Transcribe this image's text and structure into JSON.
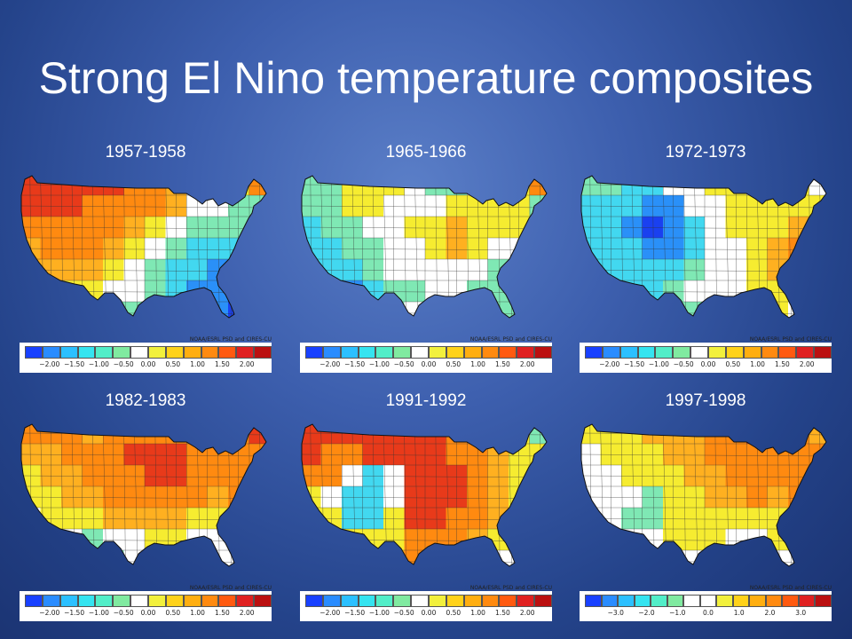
{
  "slide": {
    "title": "Strong El Nino temperature composites"
  },
  "credit_text": "NOAA/ESRL PSD and CIRES-CU",
  "scales": {
    "standard": {
      "colors": [
        "#1840ff",
        "#2a8cff",
        "#2cc0ff",
        "#35e4f0",
        "#52eec8",
        "#80eaa0",
        "#ffffff",
        "#f2f03c",
        "#ffd21a",
        "#ffae10",
        "#ff8a10",
        "#ff5a10",
        "#e02020",
        "#bb1010"
      ],
      "ticks": [
        "−2.00",
        "−1.50",
        "−1.00",
        "−0.50",
        "0.00",
        "0.50",
        "1.00",
        "1.50",
        "2.00"
      ]
    },
    "wide": {
      "colors": [
        "#1840ff",
        "#2a8cff",
        "#2cc0ff",
        "#35e4f0",
        "#52eec8",
        "#80eaa0",
        "#ffffff",
        "#ffffff",
        "#f2f03c",
        "#ffd21a",
        "#ffae10",
        "#ff8a10",
        "#ff5a10",
        "#e02020",
        "#bb1010"
      ],
      "ticks": [
        "−3.0",
        "−2.0",
        "−1.0",
        "0.0",
        "1.0",
        "2.0",
        "3.0"
      ]
    }
  },
  "palette": {
    "red": "#e83a1a",
    "orange": "#ff8a10",
    "lightorange": "#ffb020",
    "yellow": "#f6ec30",
    "white": "#ffffff",
    "mint": "#7fe8b4",
    "cyan": "#42d8f0",
    "blue": "#2a90f8",
    "deepblue": "#1a40f0"
  },
  "panels": [
    {
      "label": "1957-1958",
      "scale": "standard",
      "pattern": [
        [
          "red",
          "red",
          "red",
          "red",
          "red",
          "orange",
          "orange",
          "lightorange",
          "white",
          "white",
          "yellow",
          "orange"
        ],
        [
          "red",
          "red",
          "red",
          "orange",
          "orange",
          "orange",
          "orange",
          "lightorange",
          "white",
          "white",
          "mint",
          "mint"
        ],
        [
          "orange",
          "orange",
          "orange",
          "orange",
          "orange",
          "lightorange",
          "yellow",
          "white",
          "mint",
          "mint",
          "mint",
          "mint"
        ],
        [
          "lightorange",
          "orange",
          "orange",
          "orange",
          "lightorange",
          "yellow",
          "white",
          "mint",
          "cyan",
          "cyan",
          "cyan",
          "cyan"
        ],
        [
          "lightorange",
          "lightorange",
          "lightorange",
          "lightorange",
          "yellow",
          "white",
          "mint",
          "cyan",
          "cyan",
          "blue",
          "blue",
          "blue"
        ],
        [
          "yellow",
          "yellow",
          "yellow",
          "yellow",
          "white",
          "white",
          "mint",
          "cyan",
          "blue",
          "blue",
          "deepblue",
          "deepblue"
        ],
        [
          "yellow",
          "yellow",
          "yellow",
          "white",
          "mint",
          "mint",
          "cyan",
          "cyan",
          "blue",
          "blue",
          "deepblue",
          "deepblue"
        ]
      ]
    },
    {
      "label": "1965-1966",
      "scale": "standard",
      "pattern": [
        [
          "mint",
          "mint",
          "yellow",
          "yellow",
          "yellow",
          "white",
          "mint",
          "mint",
          "white",
          "yellow",
          "yellow",
          "orange"
        ],
        [
          "mint",
          "mint",
          "yellow",
          "yellow",
          "white",
          "white",
          "white",
          "yellow",
          "yellow",
          "yellow",
          "yellow",
          "mint"
        ],
        [
          "cyan",
          "mint",
          "mint",
          "white",
          "white",
          "yellow",
          "yellow",
          "lightorange",
          "yellow",
          "yellow",
          "yellow",
          "mint"
        ],
        [
          "cyan",
          "cyan",
          "mint",
          "mint",
          "white",
          "white",
          "yellow",
          "lightorange",
          "yellow",
          "white",
          "white",
          "mint"
        ],
        [
          "cyan",
          "cyan",
          "cyan",
          "mint",
          "white",
          "white",
          "white",
          "white",
          "white",
          "mint",
          "mint",
          "mint"
        ],
        [
          "cyan",
          "cyan",
          "blue",
          "cyan",
          "mint",
          "mint",
          "white",
          "white",
          "mint",
          "mint",
          "mint",
          "white"
        ],
        [
          "cyan",
          "cyan",
          "cyan",
          "mint",
          "mint",
          "white",
          "white",
          "white",
          "mint",
          "mint",
          "mint",
          "white"
        ]
      ]
    },
    {
      "label": "1972-1973",
      "scale": "standard",
      "pattern": [
        [
          "mint",
          "mint",
          "cyan",
          "cyan",
          "white",
          "white",
          "yellow",
          "yellow",
          "white",
          "yellow",
          "yellow",
          "white"
        ],
        [
          "cyan",
          "cyan",
          "cyan",
          "blue",
          "blue",
          "white",
          "white",
          "yellow",
          "yellow",
          "yellow",
          "yellow",
          "yellow"
        ],
        [
          "cyan",
          "cyan",
          "blue",
          "deepblue",
          "blue",
          "cyan",
          "white",
          "yellow",
          "yellow",
          "yellow",
          "lightorange",
          "orange"
        ],
        [
          "cyan",
          "cyan",
          "cyan",
          "blue",
          "blue",
          "cyan",
          "white",
          "white",
          "yellow",
          "lightorange",
          "orange",
          "orange"
        ],
        [
          "cyan",
          "cyan",
          "cyan",
          "cyan",
          "cyan",
          "mint",
          "white",
          "white",
          "yellow",
          "lightorange",
          "lightorange",
          "orange"
        ],
        [
          "mint",
          "cyan",
          "cyan",
          "cyan",
          "mint",
          "white",
          "white",
          "white",
          "yellow",
          "yellow",
          "lightorange",
          "white"
        ],
        [
          "mint",
          "mint",
          "cyan",
          "cyan",
          "mint",
          "mint",
          "white",
          "white",
          "yellow",
          "yellow",
          "white",
          "white"
        ]
      ]
    },
    {
      "label": "1982-1983",
      "scale": "standard",
      "pattern": [
        [
          "orange",
          "orange",
          "orange",
          "lightorange",
          "orange",
          "orange",
          "orange",
          "orange",
          "orange",
          "orange",
          "orange",
          "red"
        ],
        [
          "lightorange",
          "lightorange",
          "orange",
          "orange",
          "orange",
          "red",
          "red",
          "red",
          "orange",
          "orange",
          "orange",
          "orange"
        ],
        [
          "yellow",
          "lightorange",
          "lightorange",
          "orange",
          "orange",
          "orange",
          "red",
          "red",
          "orange",
          "orange",
          "orange",
          "orange"
        ],
        [
          "yellow",
          "yellow",
          "lightorange",
          "lightorange",
          "orange",
          "orange",
          "orange",
          "orange",
          "orange",
          "lightorange",
          "orange",
          "lightorange"
        ],
        [
          "white",
          "yellow",
          "yellow",
          "yellow",
          "lightorange",
          "lightorange",
          "lightorange",
          "lightorange",
          "yellow",
          "yellow",
          "yellow",
          "yellow"
        ],
        [
          "white",
          "white",
          "white",
          "mint",
          "white",
          "white",
          "yellow",
          "yellow",
          "white",
          "white",
          "white",
          "white"
        ],
        [
          "white",
          "white",
          "mint",
          "mint",
          "mint",
          "white",
          "white",
          "white",
          "white",
          "white",
          "white",
          "white"
        ]
      ]
    },
    {
      "label": "1991-1992",
      "scale": "standard",
      "pattern": [
        [
          "red",
          "red",
          "red",
          "red",
          "red",
          "red",
          "red",
          "orange",
          "orange",
          "lightorange",
          "yellow",
          "mint"
        ],
        [
          "red",
          "orange",
          "orange",
          "red",
          "red",
          "red",
          "red",
          "orange",
          "orange",
          "lightorange",
          "yellow",
          "yellow"
        ],
        [
          "orange",
          "orange",
          "white",
          "cyan",
          "white",
          "red",
          "red",
          "red",
          "orange",
          "lightorange",
          "yellow",
          "yellow"
        ],
        [
          "yellow",
          "white",
          "cyan",
          "cyan",
          "white",
          "red",
          "red",
          "red",
          "orange",
          "lightorange",
          "yellow",
          "yellow"
        ],
        [
          "yellow",
          "yellow",
          "cyan",
          "cyan",
          "yellow",
          "red",
          "red",
          "orange",
          "orange",
          "lightorange",
          "yellow",
          "white"
        ],
        [
          "white",
          "yellow",
          "yellow",
          "yellow",
          "yellow",
          "orange",
          "orange",
          "orange",
          "lightorange",
          "yellow",
          "white",
          "white"
        ],
        [
          "white",
          "white",
          "yellow",
          "yellow",
          "lightorange",
          "orange",
          "orange",
          "lightorange",
          "yellow",
          "white",
          "white",
          "white"
        ]
      ]
    },
    {
      "label": "1997-1998",
      "scale": "wide",
      "pattern": [
        [
          "yellow",
          "yellow",
          "yellow",
          "lightorange",
          "lightorange",
          "lightorange",
          "orange",
          "orange",
          "red",
          "orange",
          "orange",
          "lightorange"
        ],
        [
          "white",
          "yellow",
          "yellow",
          "yellow",
          "lightorange",
          "lightorange",
          "orange",
          "orange",
          "orange",
          "orange",
          "orange",
          "orange"
        ],
        [
          "white",
          "white",
          "yellow",
          "yellow",
          "yellow",
          "lightorange",
          "lightorange",
          "orange",
          "orange",
          "orange",
          "orange",
          "orange"
        ],
        [
          "white",
          "white",
          "white",
          "mint",
          "yellow",
          "yellow",
          "lightorange",
          "lightorange",
          "orange",
          "lightorange",
          "orange",
          "lightorange"
        ],
        [
          "white",
          "white",
          "mint",
          "mint",
          "yellow",
          "yellow",
          "yellow",
          "yellow",
          "yellow",
          "yellow",
          "lightorange",
          "yellow"
        ],
        [
          "white",
          "white",
          "white",
          "white",
          "yellow",
          "yellow",
          "yellow",
          "white",
          "white",
          "yellow",
          "yellow",
          "white"
        ],
        [
          "white",
          "white",
          "white",
          "white",
          "white",
          "white",
          "white",
          "white",
          "white",
          "white",
          "white",
          "white"
        ]
      ]
    }
  ]
}
